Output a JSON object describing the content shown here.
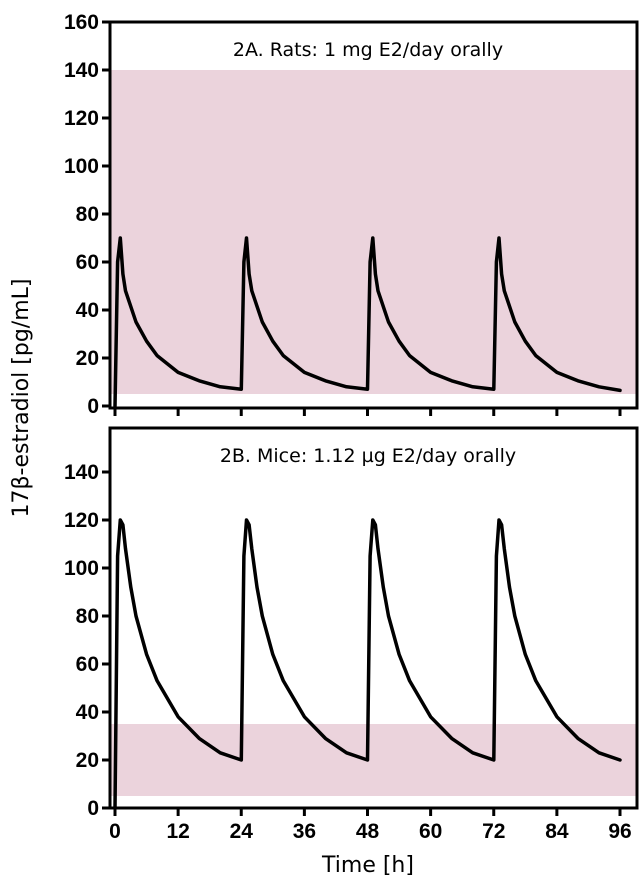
{
  "figure": {
    "ylabel": "17β-estradiol [pg/mL]",
    "xlabel": "Time [h]"
  },
  "chart_data": [
    {
      "type": "line",
      "title": "2A. Rats: 1 mg E2/day orally",
      "xlim": [
        0,
        96
      ],
      "ylim": [
        0,
        160
      ],
      "x_ticks": [
        0,
        12,
        24,
        36,
        48,
        60,
        72,
        84,
        96
      ],
      "y_ticks": [
        0,
        20,
        40,
        60,
        80,
        100,
        120,
        140,
        160
      ],
      "show_x_tick_labels": false,
      "shaded_band": {
        "y_range": [
          5,
          140
        ],
        "color": "#ebd3dc"
      },
      "line_color": "#000000",
      "dosing_times": [
        0,
        24,
        48,
        72
      ],
      "curve_points": [
        [
          0,
          0
        ],
        [
          0.5,
          60
        ],
        [
          1,
          70
        ],
        [
          1.5,
          55
        ],
        [
          2,
          48
        ],
        [
          4,
          35
        ],
        [
          6,
          27
        ],
        [
          8,
          21
        ],
        [
          12,
          14
        ],
        [
          16,
          10.5
        ],
        [
          20,
          8
        ],
        [
          24,
          7
        ],
        [
          24.5,
          60
        ],
        [
          25,
          70
        ],
        [
          25.5,
          55
        ],
        [
          26,
          48
        ],
        [
          28,
          35
        ],
        [
          30,
          27
        ],
        [
          32,
          21
        ],
        [
          36,
          14
        ],
        [
          40,
          10.5
        ],
        [
          44,
          8
        ],
        [
          48,
          7
        ],
        [
          48.5,
          60
        ],
        [
          49,
          70
        ],
        [
          49.5,
          55
        ],
        [
          50,
          48
        ],
        [
          52,
          35
        ],
        [
          54,
          27
        ],
        [
          56,
          21
        ],
        [
          60,
          14
        ],
        [
          64,
          10.5
        ],
        [
          68,
          8
        ],
        [
          72,
          7
        ],
        [
          72.5,
          60
        ],
        [
          73,
          70
        ],
        [
          73.5,
          55
        ],
        [
          74,
          48
        ],
        [
          76,
          35
        ],
        [
          78,
          27
        ],
        [
          80,
          21
        ],
        [
          84,
          14
        ],
        [
          88,
          10.5
        ],
        [
          92,
          8
        ],
        [
          96,
          6.5
        ]
      ]
    },
    {
      "type": "line",
      "title": "2B. Mice: 1.12 µg E2/day orally",
      "xlim": [
        0,
        96
      ],
      "ylim": [
        0,
        160
      ],
      "x_ticks": [
        0,
        12,
        24,
        36,
        48,
        60,
        72,
        84,
        96
      ],
      "y_ticks": [
        0,
        20,
        40,
        60,
        80,
        100,
        120,
        140
      ],
      "show_x_tick_labels": true,
      "shaded_band": {
        "y_range": [
          5,
          35
        ],
        "color": "#ebd3dc"
      },
      "line_color": "#000000",
      "dosing_times": [
        0,
        24,
        48,
        72
      ],
      "curve_points": [
        [
          0,
          0
        ],
        [
          0.5,
          105
        ],
        [
          1,
          120
        ],
        [
          1.5,
          118
        ],
        [
          2,
          108
        ],
        [
          3,
          92
        ],
        [
          4,
          80
        ],
        [
          6,
          64
        ],
        [
          8,
          53
        ],
        [
          12,
          38
        ],
        [
          16,
          29
        ],
        [
          20,
          23
        ],
        [
          24,
          20
        ],
        [
          24.5,
          105
        ],
        [
          25,
          120
        ],
        [
          25.5,
          118
        ],
        [
          26,
          108
        ],
        [
          27,
          92
        ],
        [
          28,
          80
        ],
        [
          30,
          64
        ],
        [
          32,
          53
        ],
        [
          36,
          38
        ],
        [
          40,
          29
        ],
        [
          44,
          23
        ],
        [
          48,
          20
        ],
        [
          48.5,
          105
        ],
        [
          49,
          120
        ],
        [
          49.5,
          118
        ],
        [
          50,
          108
        ],
        [
          51,
          92
        ],
        [
          52,
          80
        ],
        [
          54,
          64
        ],
        [
          56,
          53
        ],
        [
          60,
          38
        ],
        [
          64,
          29
        ],
        [
          68,
          23
        ],
        [
          72,
          20
        ],
        [
          72.5,
          105
        ],
        [
          73,
          120
        ],
        [
          73.5,
          118
        ],
        [
          74,
          108
        ],
        [
          75,
          92
        ],
        [
          76,
          80
        ],
        [
          78,
          64
        ],
        [
          80,
          53
        ],
        [
          84,
          38
        ],
        [
          88,
          29
        ],
        [
          92,
          23
        ],
        [
          96,
          20
        ]
      ]
    }
  ]
}
